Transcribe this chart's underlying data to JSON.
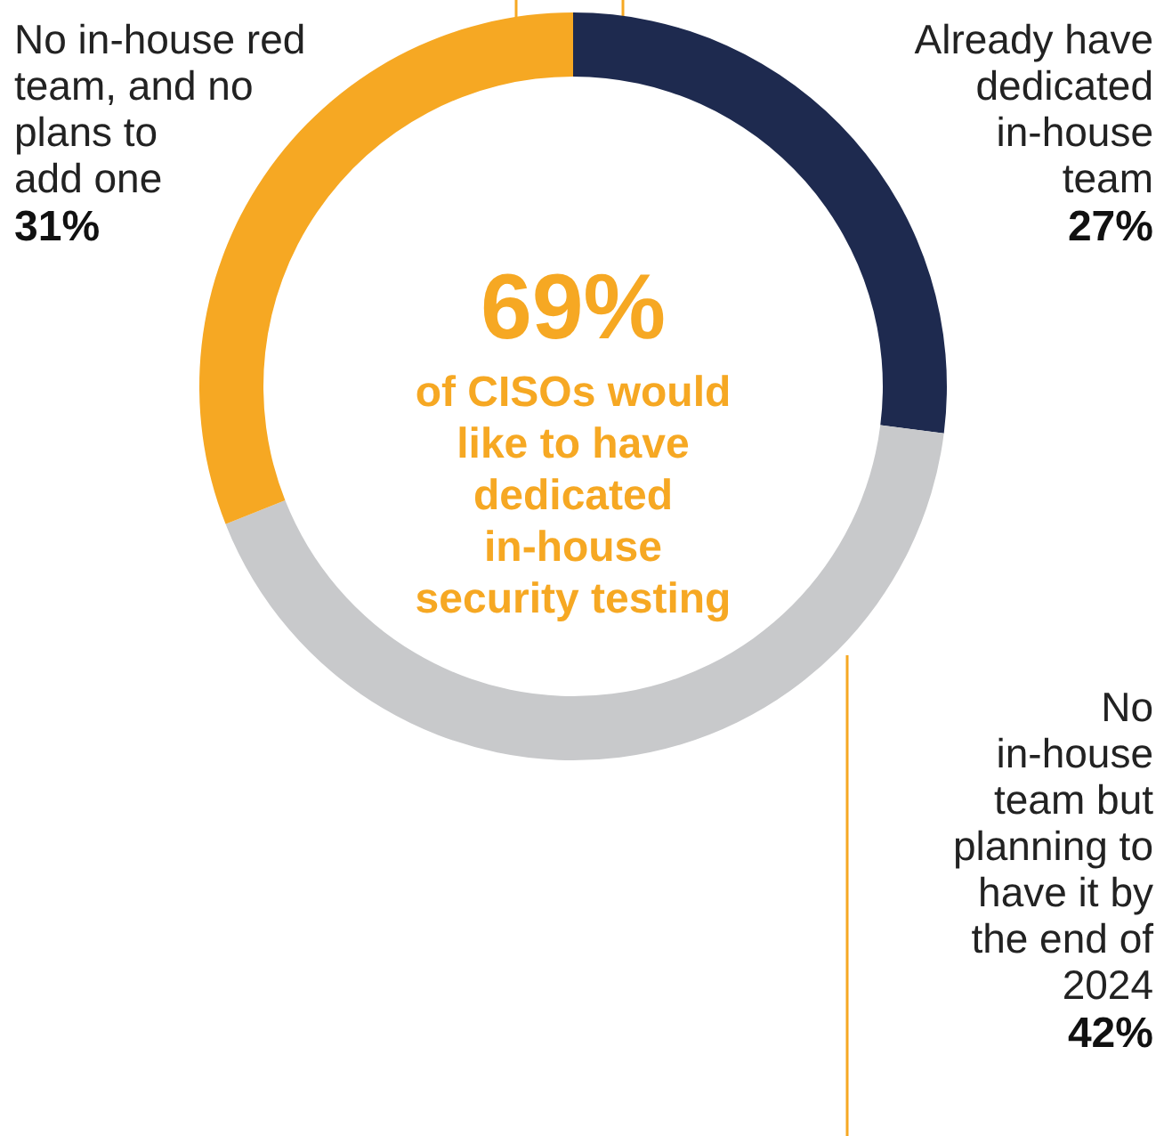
{
  "chart_data": {
    "type": "donut",
    "categories": [
      "Already have dedicated in-house team",
      "No in-house team but planning to have it by the end of 2024",
      "No in-house red team, and no plans to add one"
    ],
    "values": [
      27,
      42,
      31
    ],
    "value_labels": [
      "27%",
      "42%",
      "31%"
    ],
    "colors": [
      "#1e2a4f",
      "#c8c9cb",
      "#f6a823"
    ],
    "annotations": [
      "69%",
      "of CISOs would like to have dedicated in-house security testing"
    ]
  }
}
